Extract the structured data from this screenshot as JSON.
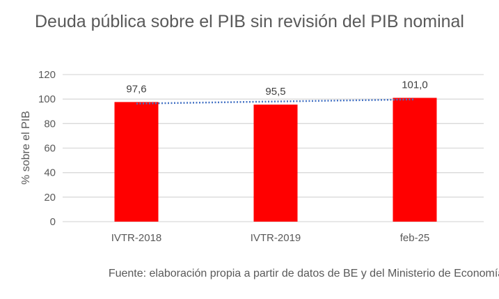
{
  "chart_data": {
    "type": "bar",
    "title": "Deuda pública sobre el PIB sin revisión del PIB nominal",
    "ylabel": "% sobre el PIB",
    "xlabel": "",
    "categories": [
      "IVTR-2018",
      "IVTR-2019",
      "feb-25"
    ],
    "values": [
      97.6,
      95.5,
      101.0
    ],
    "data_labels": [
      "97,6",
      "95,5",
      "101,0"
    ],
    "ylim": [
      0,
      120
    ],
    "yticks": [
      0,
      20,
      40,
      60,
      80,
      100,
      120
    ],
    "grid": true,
    "trendline": {
      "type": "linear",
      "style": "dotted"
    },
    "bar_color": "#FF0000",
    "trendline_color": "#4472C4",
    "source_note": "Fuente: elaboración propia a partir de datos de BE y del Ministerio de Economía"
  }
}
